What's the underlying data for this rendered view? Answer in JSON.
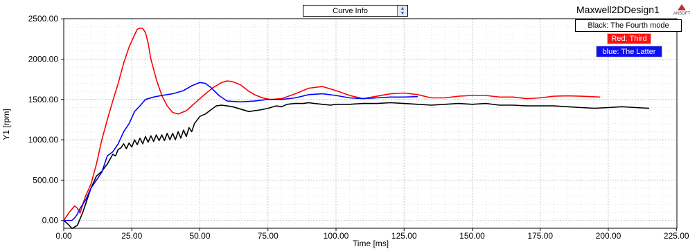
{
  "header": {
    "curve_info_label": "Curve Info",
    "design_name": "Maxwell2DDesign1",
    "logo_text": "ANSOFT"
  },
  "chart_data": {
    "type": "line",
    "xlabel": "Time [ms]",
    "ylabel": "Y1 [rpm]",
    "xlim": [
      0,
      225
    ],
    "ylim": [
      -100,
      2500
    ],
    "xticks": [
      0,
      25,
      50,
      75,
      100,
      125,
      150,
      175,
      200,
      225
    ],
    "xtick_labels": [
      "0.00",
      "25.00",
      "50.00",
      "75.00",
      "100.00",
      "125.00",
      "150.00",
      "175.00",
      "200.00",
      "225.00"
    ],
    "yticks": [
      0,
      500,
      1000,
      1500,
      2000,
      2500
    ],
    "ytick_labels": [
      "0.00",
      "500.00",
      "1000.00",
      "1500.00",
      "2000.00",
      "2500.00"
    ],
    "grid": true,
    "legend_placement": "top-right",
    "series": [
      {
        "name": "Black: The Fourth mode",
        "color": "#000000",
        "x": [
          0,
          2,
          3,
          5,
          7,
          8,
          10,
          12,
          14,
          16,
          18,
          19,
          20,
          21,
          22,
          23,
          24,
          25,
          26,
          27,
          28,
          29,
          30,
          31,
          32,
          33,
          34,
          35,
          36,
          37,
          38,
          39,
          40,
          41,
          42,
          43,
          44,
          45,
          46,
          47,
          48,
          50,
          52,
          54,
          56,
          58,
          60,
          62,
          65,
          68,
          70,
          72,
          75,
          78,
          80,
          82,
          85,
          88,
          90,
          92,
          95,
          98,
          100,
          105,
          110,
          115,
          120,
          125,
          130,
          135,
          140,
          145,
          150,
          155,
          160,
          165,
          170,
          175,
          180,
          185,
          190,
          195,
          200,
          205,
          210,
          215
        ],
        "y": [
          0,
          -60,
          -100,
          -60,
          100,
          200,
          400,
          550,
          610,
          700,
          820,
          800,
          880,
          900,
          950,
          890,
          960,
          910,
          1000,
          940,
          1020,
          950,
          1040,
          970,
          1050,
          980,
          1060,
          990,
          1060,
          990,
          1080,
          1000,
          1080,
          1000,
          1100,
          1020,
          1120,
          1040,
          1150,
          1100,
          1200,
          1290,
          1320,
          1370,
          1420,
          1430,
          1420,
          1410,
          1380,
          1350,
          1360,
          1370,
          1390,
          1420,
          1410,
          1440,
          1450,
          1450,
          1460,
          1450,
          1440,
          1430,
          1440,
          1440,
          1450,
          1450,
          1460,
          1450,
          1440,
          1430,
          1440,
          1450,
          1440,
          1450,
          1430,
          1430,
          1420,
          1420,
          1420,
          1410,
          1400,
          1390,
          1400,
          1410,
          1400,
          1390
        ]
      },
      {
        "name": "Red: Third",
        "color": "#ff0000",
        "x": [
          0,
          2,
          4,
          5,
          6,
          7,
          8,
          10,
          12,
          14,
          16,
          18,
          20,
          22,
          24,
          26,
          27,
          28,
          29,
          30,
          31,
          32,
          34,
          36,
          38,
          40,
          42,
          45,
          48,
          52,
          55,
          58,
          60,
          62,
          65,
          68,
          70,
          73,
          76,
          80,
          85,
          90,
          95,
          100,
          105,
          110,
          115,
          120,
          125,
          130,
          135,
          140,
          145,
          150,
          155,
          160,
          165,
          170,
          175,
          180,
          185,
          190,
          197
        ],
        "y": [
          0,
          100,
          180,
          150,
          90,
          200,
          300,
          450,
          700,
          1000,
          1250,
          1480,
          1700,
          1950,
          2150,
          2300,
          2370,
          2385,
          2380,
          2330,
          2200,
          2000,
          1750,
          1550,
          1420,
          1340,
          1320,
          1360,
          1450,
          1570,
          1650,
          1710,
          1730,
          1720,
          1680,
          1600,
          1560,
          1520,
          1500,
          1510,
          1570,
          1640,
          1660,
          1610,
          1550,
          1510,
          1540,
          1570,
          1580,
          1560,
          1520,
          1520,
          1540,
          1550,
          1550,
          1530,
          1530,
          1510,
          1520,
          1540,
          1545,
          1540,
          1530
        ]
      },
      {
        "name": "blue: The Latter",
        "color": "#0000ff",
        "x": [
          0,
          3,
          4,
          5,
          6,
          8,
          10,
          12,
          14,
          16,
          18,
          20,
          22,
          24,
          26,
          28,
          30,
          33,
          36,
          40,
          44,
          47,
          50,
          52,
          54,
          57,
          60,
          65,
          70,
          75,
          80,
          85,
          90,
          95,
          100,
          105,
          110,
          115,
          120,
          125,
          130
        ],
        "y": [
          0,
          0,
          30,
          80,
          150,
          250,
          400,
          500,
          600,
          800,
          850,
          950,
          1100,
          1200,
          1350,
          1420,
          1500,
          1530,
          1550,
          1570,
          1610,
          1670,
          1710,
          1700,
          1650,
          1550,
          1480,
          1470,
          1480,
          1500,
          1500,
          1520,
          1560,
          1570,
          1550,
          1520,
          1510,
          1520,
          1530,
          1530,
          1535
        ]
      }
    ]
  }
}
